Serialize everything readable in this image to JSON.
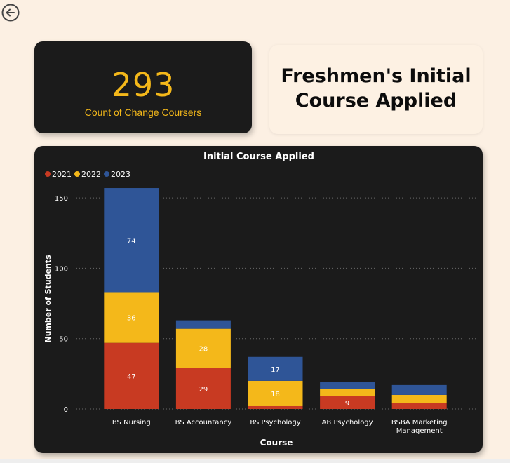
{
  "kpi": {
    "value": "293",
    "label": "Count of Change Coursers"
  },
  "page_title": {
    "line1": "Freshmen's Initial",
    "line2": "Course Applied"
  },
  "colors": {
    "background": "#fcf0e3",
    "card_dark": "#1b1b1b",
    "accent": "#f4b81a",
    "series_2021": "#c83a22",
    "series_2022": "#f4b81a",
    "series_2023": "#2f5597"
  },
  "icons": {
    "back": "back-arrow-icon"
  },
  "chart_data": {
    "type": "bar",
    "stacked": true,
    "title": "Initial Course Applied",
    "xlabel": "Course",
    "ylabel": "Number of Students",
    "ylim": [
      0,
      162
    ],
    "yticks": [
      0,
      50,
      100,
      150
    ],
    "legend_position": "top-left",
    "categories": [
      "BS Nursing",
      "BS Accountancy",
      "BS Psychology",
      "AB Psychology",
      "BSBA Marketing Management"
    ],
    "series": [
      {
        "name": "2021",
        "color": "#c83a22",
        "values": [
          47,
          29,
          2,
          9,
          4
        ],
        "labels": [
          "47",
          "29",
          "",
          "9",
          ""
        ]
      },
      {
        "name": "2022",
        "color": "#f4b81a",
        "values": [
          36,
          28,
          18,
          5,
          6
        ],
        "labels": [
          "36",
          "28",
          "18",
          "",
          ""
        ]
      },
      {
        "name": "2023",
        "color": "#2f5597",
        "values": [
          74,
          6,
          17,
          5,
          7
        ],
        "labels": [
          "74",
          "",
          "17",
          "",
          ""
        ]
      }
    ]
  }
}
